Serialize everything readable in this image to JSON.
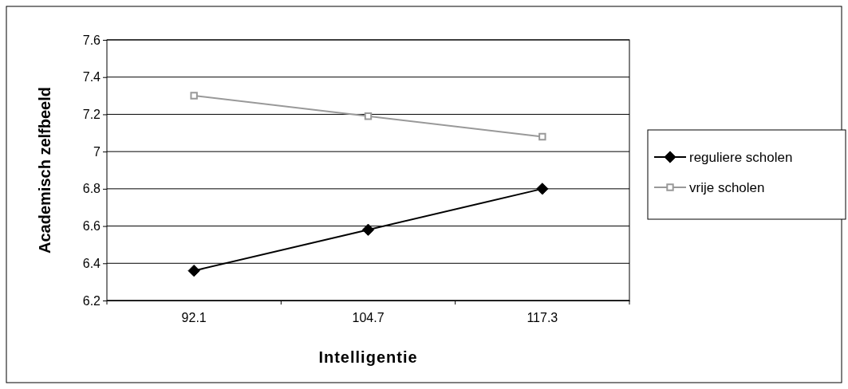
{
  "chart_data": {
    "type": "line",
    "xlabel": "Intelligentie",
    "ylabel": "Academisch zelfbeeld",
    "categories": [
      "92.1",
      "104.7",
      "117.3"
    ],
    "series": [
      {
        "name": "reguliere scholen",
        "color": "#000000",
        "marker": "diamond",
        "values": [
          6.36,
          6.58,
          6.8
        ]
      },
      {
        "name": "vrije scholen",
        "color": "#999999",
        "marker": "square",
        "values": [
          7.3,
          7.19,
          7.08
        ]
      }
    ],
    "ylim": [
      6.2,
      7.6
    ],
    "yticks": [
      6.2,
      6.4,
      6.6,
      6.8,
      7,
      7.2,
      7.4,
      7.6
    ],
    "grid": "y",
    "legend": "right",
    "line_style": "solid"
  }
}
